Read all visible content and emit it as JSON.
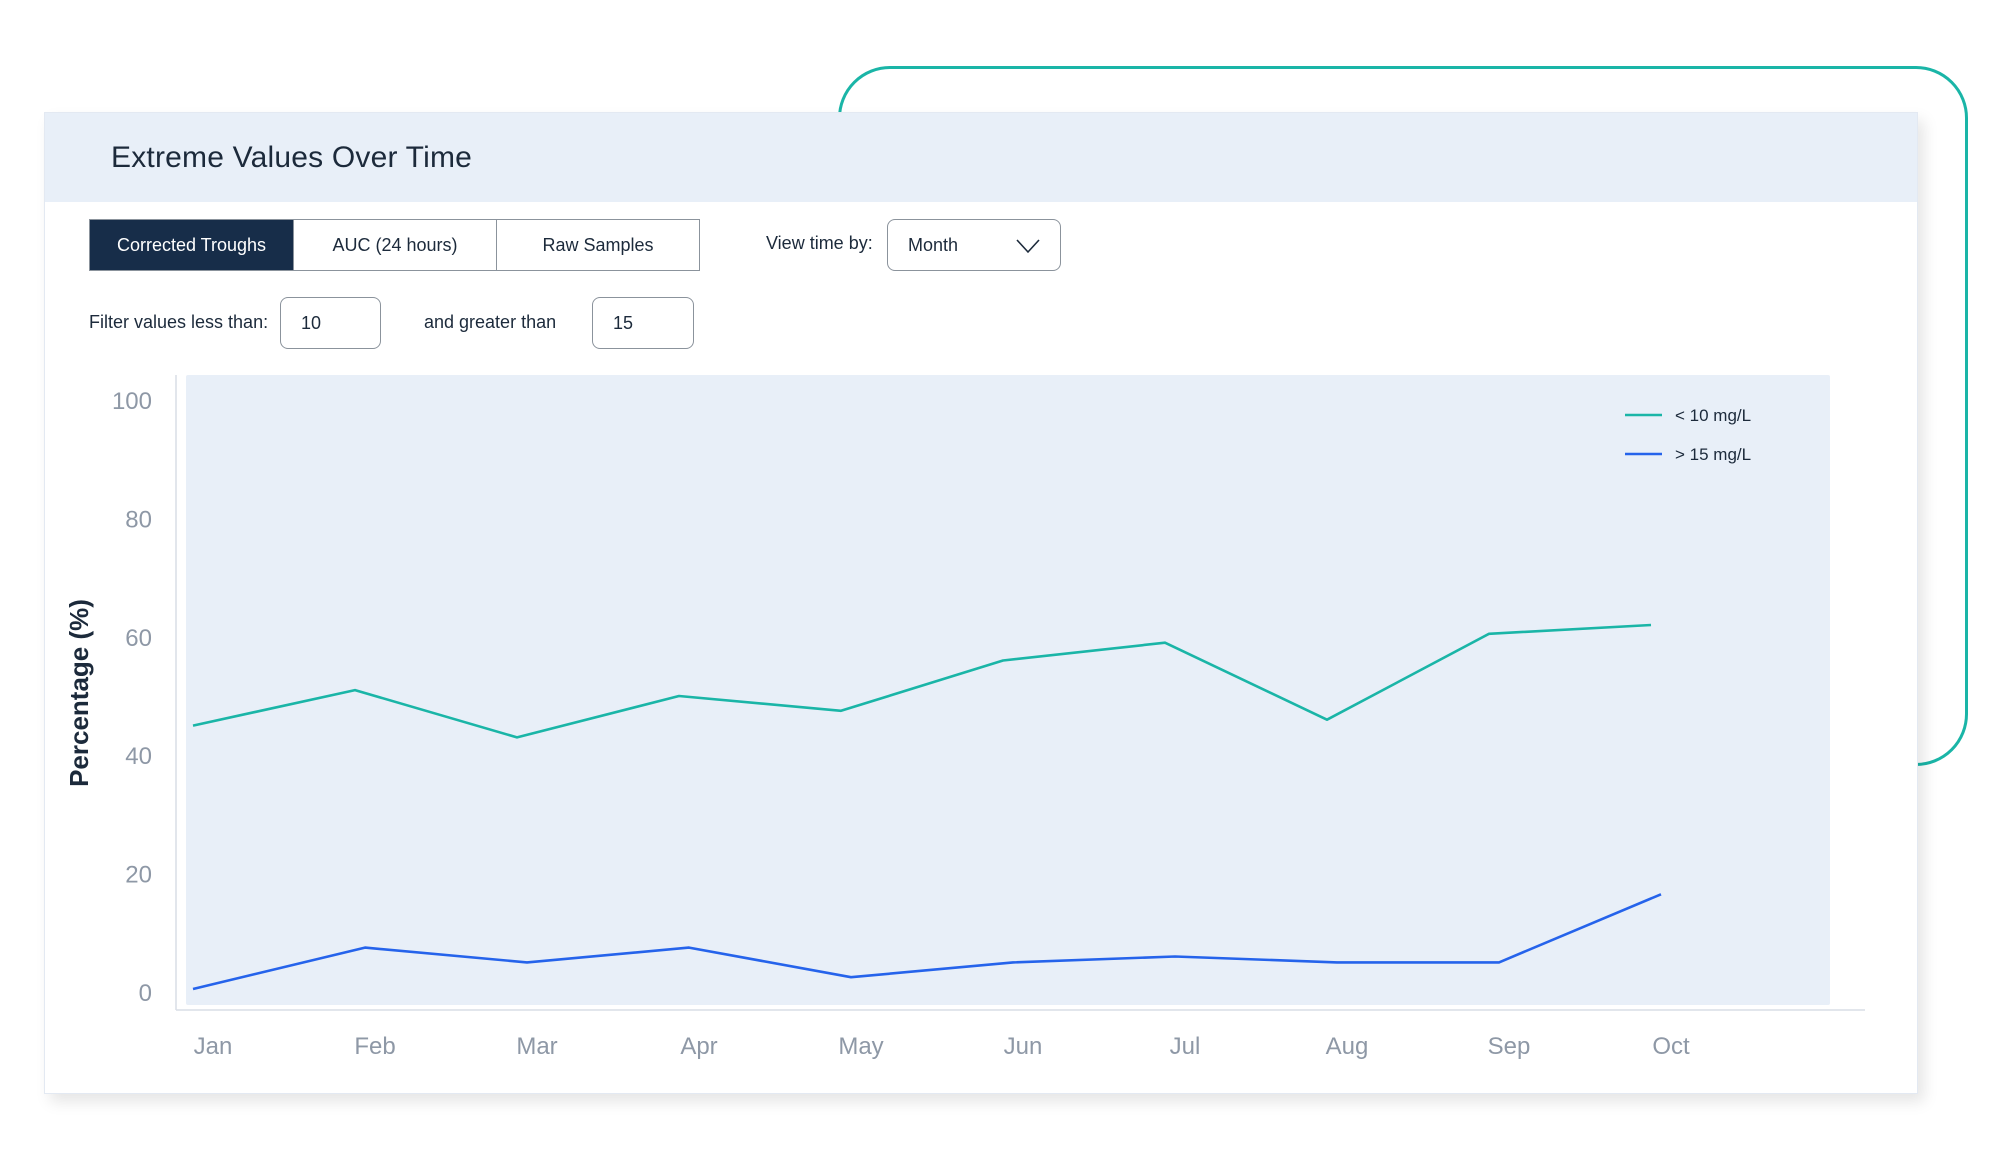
{
  "card": {
    "title": "Extreme Values Over Time"
  },
  "tabs": [
    "Corrected Troughs",
    "AUC (24 hours)",
    "Raw Samples"
  ],
  "view": {
    "label": "View time by:",
    "value": "Month"
  },
  "filter": {
    "less_label": "Filter values less than:",
    "less_value": "10",
    "greater_label": "and greater than",
    "greater_value": "15"
  },
  "colors": {
    "series_low": "#1ab5a7",
    "series_high": "#2563eb",
    "header_bg": "#e8eff8",
    "active_tab": "#172d49"
  },
  "chart_data": {
    "type": "line",
    "title": "",
    "xlabel": "",
    "ylabel": "Percentage (%)",
    "ylim": [
      0,
      100
    ],
    "yticks": [
      0,
      20,
      40,
      60,
      80,
      100
    ],
    "categories": [
      "Jan",
      "Feb",
      "Mar",
      "Apr",
      "May",
      "Jun",
      "Jul",
      "Aug",
      "Sep",
      "Oct"
    ],
    "legend_position": "top-right",
    "grid": false,
    "series": [
      {
        "name": "< 10 mg/L",
        "color": "#1ab5a7",
        "values": [
          45,
          51,
          43,
          50,
          47.5,
          56,
          59,
          46,
          60.5,
          62
        ]
      },
      {
        "name": "> 15 mg/L",
        "color": "#2563eb",
        "values": [
          0.5,
          7.5,
          5,
          7.5,
          2.5,
          5,
          6,
          5,
          5,
          16.5
        ]
      }
    ]
  }
}
